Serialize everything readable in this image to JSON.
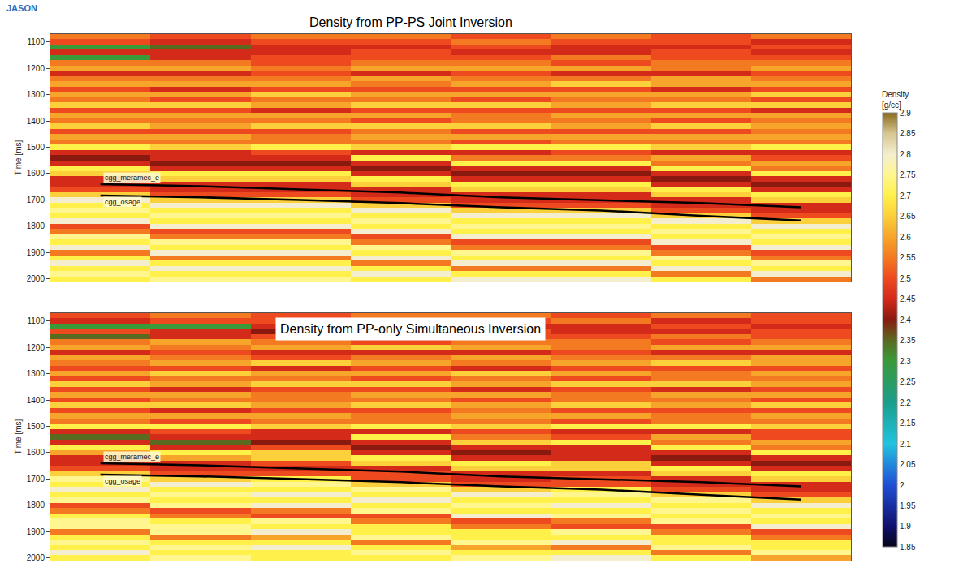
{
  "logo": "JASON",
  "colorbar": {
    "title": [
      "Density",
      "[g/cc]"
    ],
    "zlim": [
      1.85,
      2.9
    ],
    "zticks": [
      1.85,
      1.9,
      1.95,
      2,
      2.05,
      2.1,
      2.15,
      2.2,
      2.25,
      2.3,
      2.35,
      2.4,
      2.45,
      2.5,
      2.55,
      2.6,
      2.65,
      2.7,
      2.75,
      2.8,
      2.85,
      2.9
    ]
  },
  "chart_data": [
    {
      "type": "heatmap",
      "title": "Density from PP-PS Joint Inversion",
      "y_label": "Time [ms]",
      "x": [
        0,
        1,
        2,
        3,
        4,
        5,
        6,
        7
      ],
      "y": [
        1080,
        1100,
        1120,
        1140,
        1160,
        1180,
        1200,
        1220,
        1240,
        1260,
        1280,
        1300,
        1320,
        1340,
        1360,
        1380,
        1400,
        1420,
        1440,
        1460,
        1480,
        1500,
        1520,
        1540,
        1560,
        1580,
        1600,
        1620,
        1640,
        1660,
        1680,
        1700,
        1720,
        1740,
        1760,
        1780,
        1800,
        1820,
        1840,
        1860,
        1880,
        1900,
        1920,
        1940,
        1960,
        1980,
        2000
      ],
      "xlim": [
        -0.5,
        7.5
      ],
      "ylim": [
        2010,
        1070
      ],
      "yticks": [
        1100,
        1200,
        1300,
        1400,
        1500,
        1600,
        1700,
        1800,
        1900,
        2000
      ],
      "tick_labels": "y",
      "z": [
        [
          2.55,
          2.5,
          2.55,
          2.55,
          2.5,
          2.55,
          2.5,
          2.55
        ],
        [
          2.5,
          2.45,
          2.5,
          2.5,
          2.55,
          2.5,
          2.5,
          2.45
        ],
        [
          2.3,
          2.35,
          2.45,
          2.45,
          2.5,
          2.45,
          2.45,
          2.5
        ],
        [
          2.45,
          2.45,
          2.45,
          2.5,
          2.45,
          2.45,
          2.5,
          2.45
        ],
        [
          2.3,
          2.45,
          2.5,
          2.5,
          2.5,
          2.55,
          2.5,
          2.5
        ],
        [
          2.55,
          2.55,
          2.5,
          2.55,
          2.55,
          2.5,
          2.55,
          2.55
        ],
        [
          2.6,
          2.6,
          2.55,
          2.6,
          2.6,
          2.6,
          2.55,
          2.6
        ],
        [
          2.45,
          2.45,
          2.5,
          2.45,
          2.5,
          2.45,
          2.45,
          2.5
        ],
        [
          2.55,
          2.55,
          2.55,
          2.6,
          2.55,
          2.55,
          2.6,
          2.55
        ],
        [
          2.6,
          2.6,
          2.6,
          2.55,
          2.6,
          2.65,
          2.6,
          2.6
        ],
        [
          2.5,
          2.45,
          2.5,
          2.5,
          2.5,
          2.5,
          2.45,
          2.5
        ],
        [
          2.6,
          2.6,
          2.65,
          2.6,
          2.6,
          2.6,
          2.6,
          2.65
        ],
        [
          2.55,
          2.5,
          2.55,
          2.55,
          2.5,
          2.55,
          2.55,
          2.5
        ],
        [
          2.65,
          2.65,
          2.6,
          2.65,
          2.65,
          2.6,
          2.65,
          2.65
        ],
        [
          2.5,
          2.5,
          2.45,
          2.5,
          2.5,
          2.5,
          2.5,
          2.45
        ],
        [
          2.6,
          2.6,
          2.6,
          2.6,
          2.55,
          2.6,
          2.6,
          2.6
        ],
        [
          2.55,
          2.55,
          2.55,
          2.5,
          2.55,
          2.55,
          2.5,
          2.55
        ],
        [
          2.65,
          2.6,
          2.65,
          2.65,
          2.65,
          2.6,
          2.65,
          2.6
        ],
        [
          2.5,
          2.5,
          2.5,
          2.55,
          2.5,
          2.5,
          2.5,
          2.55
        ],
        [
          2.6,
          2.6,
          2.55,
          2.6,
          2.6,
          2.6,
          2.6,
          2.6
        ],
        [
          2.55,
          2.55,
          2.55,
          2.55,
          2.5,
          2.55,
          2.55,
          2.55
        ],
        [
          2.7,
          2.65,
          2.7,
          2.65,
          2.7,
          2.7,
          2.65,
          2.7
        ],
        [
          2.45,
          2.45,
          2.5,
          2.45,
          2.45,
          2.5,
          2.45,
          2.45
        ],
        [
          2.4,
          2.45,
          2.45,
          2.7,
          2.55,
          2.55,
          2.6,
          2.5
        ],
        [
          2.45,
          2.4,
          2.4,
          2.45,
          2.7,
          2.7,
          2.55,
          2.6
        ],
        [
          2.7,
          2.45,
          2.45,
          2.4,
          2.45,
          2.45,
          2.7,
          2.55
        ],
        [
          2.65,
          2.7,
          2.7,
          2.45,
          2.4,
          2.4,
          2.45,
          2.7
        ],
        [
          2.45,
          2.65,
          2.65,
          2.7,
          2.45,
          2.45,
          2.4,
          2.45
        ],
        [
          2.45,
          2.45,
          2.45,
          2.65,
          2.7,
          2.7,
          2.45,
          2.4
        ],
        [
          2.5,
          2.45,
          2.45,
          2.45,
          2.65,
          2.65,
          2.7,
          2.45
        ],
        [
          2.65,
          2.5,
          2.5,
          2.45,
          2.45,
          2.45,
          2.65,
          2.7
        ],
        [
          2.8,
          2.65,
          2.65,
          2.5,
          2.45,
          2.45,
          2.45,
          2.65
        ],
        [
          2.7,
          2.8,
          2.8,
          2.65,
          2.5,
          2.5,
          2.45,
          2.45
        ],
        [
          2.75,
          2.7,
          2.7,
          2.8,
          2.65,
          2.65,
          2.5,
          2.45
        ],
        [
          2.7,
          2.75,
          2.75,
          2.7,
          2.8,
          2.8,
          2.65,
          2.5
        ],
        [
          2.8,
          2.7,
          2.7,
          2.75,
          2.7,
          2.7,
          2.8,
          2.65
        ],
        [
          2.5,
          2.8,
          2.8,
          2.7,
          2.75,
          2.75,
          2.7,
          2.8
        ],
        [
          2.55,
          2.5,
          2.5,
          2.8,
          2.7,
          2.7,
          2.75,
          2.7
        ],
        [
          2.75,
          2.55,
          2.55,
          2.5,
          2.8,
          2.8,
          2.7,
          2.75
        ],
        [
          2.7,
          2.75,
          2.75,
          2.55,
          2.5,
          2.5,
          2.8,
          2.7
        ],
        [
          2.8,
          2.7,
          2.7,
          2.75,
          2.55,
          2.55,
          2.5,
          2.8
        ],
        [
          2.55,
          2.8,
          2.8,
          2.7,
          2.75,
          2.75,
          2.55,
          2.5
        ],
        [
          2.7,
          2.55,
          2.55,
          2.8,
          2.7,
          2.7,
          2.75,
          2.55
        ],
        [
          2.8,
          2.7,
          2.7,
          2.55,
          2.8,
          2.8,
          2.7,
          2.75
        ],
        [
          2.7,
          2.8,
          2.8,
          2.7,
          2.55,
          2.55,
          2.8,
          2.7
        ],
        [
          2.75,
          2.7,
          2.7,
          2.8,
          2.7,
          2.7,
          2.55,
          2.8
        ],
        [
          2.7,
          2.75,
          2.75,
          2.7,
          2.8,
          2.8,
          2.7,
          2.55
        ]
      ],
      "series": [
        {
          "name": "cgg_meramec_e",
          "color": "#000000",
          "values": [
            1640,
            1648,
            1660,
            1672,
            1690,
            1700,
            1712,
            1728
          ]
        },
        {
          "name": "cgg_osage",
          "color": "#000000",
          "values": [
            1683,
            1690,
            1700,
            1712,
            1728,
            1740,
            1760,
            1778
          ]
        }
      ]
    },
    {
      "type": "heatmap",
      "title": "Density from PP-only Simultaneous Inversion",
      "y_label": "Time [ms]",
      "x": [
        0,
        1,
        2,
        3,
        4,
        5,
        6,
        7
      ],
      "y": [
        1080,
        1100,
        1120,
        1140,
        1160,
        1180,
        1200,
        1220,
        1240,
        1260,
        1280,
        1300,
        1320,
        1340,
        1360,
        1380,
        1400,
        1420,
        1440,
        1460,
        1480,
        1500,
        1520,
        1540,
        1560,
        1580,
        1600,
        1620,
        1640,
        1660,
        1680,
        1700,
        1720,
        1740,
        1760,
        1780,
        1800,
        1820,
        1840,
        1860,
        1880,
        1900,
        1920,
        1940,
        1960,
        1980,
        2000
      ],
      "xlim": [
        -0.5,
        7.5
      ],
      "ylim": [
        2010,
        1070
      ],
      "yticks": [
        1100,
        1200,
        1300,
        1400,
        1500,
        1600,
        1700,
        1800,
        1900,
        2000
      ],
      "tick_labels": "y",
      "z": [
        [
          2.5,
          2.55,
          2.5,
          2.55,
          2.55,
          2.5,
          2.55,
          2.5
        ],
        [
          2.45,
          2.5,
          2.5,
          2.45,
          2.5,
          2.55,
          2.45,
          2.5
        ],
        [
          2.3,
          2.3,
          2.45,
          2.5,
          2.45,
          2.45,
          2.5,
          2.45
        ],
        [
          2.5,
          2.45,
          2.4,
          2.45,
          2.5,
          2.45,
          2.45,
          2.5
        ],
        [
          2.35,
          2.45,
          2.5,
          2.55,
          2.5,
          2.5,
          2.55,
          2.5
        ],
        [
          2.55,
          2.6,
          2.55,
          2.5,
          2.55,
          2.55,
          2.5,
          2.55
        ],
        [
          2.6,
          2.55,
          2.6,
          2.65,
          2.6,
          2.55,
          2.6,
          2.6
        ],
        [
          2.45,
          2.5,
          2.45,
          2.45,
          2.45,
          2.5,
          2.45,
          2.45
        ],
        [
          2.6,
          2.55,
          2.5,
          2.55,
          2.6,
          2.55,
          2.55,
          2.6
        ],
        [
          2.55,
          2.6,
          2.65,
          2.6,
          2.55,
          2.6,
          2.65,
          2.6
        ],
        [
          2.5,
          2.5,
          2.45,
          2.5,
          2.45,
          2.5,
          2.5,
          2.5
        ],
        [
          2.6,
          2.65,
          2.6,
          2.6,
          2.65,
          2.6,
          2.55,
          2.6
        ],
        [
          2.5,
          2.55,
          2.55,
          2.5,
          2.55,
          2.5,
          2.55,
          2.55
        ],
        [
          2.65,
          2.6,
          2.65,
          2.65,
          2.6,
          2.65,
          2.65,
          2.6
        ],
        [
          2.5,
          2.45,
          2.5,
          2.5,
          2.45,
          2.5,
          2.45,
          2.5
        ],
        [
          2.6,
          2.6,
          2.55,
          2.6,
          2.6,
          2.55,
          2.6,
          2.6
        ],
        [
          2.5,
          2.55,
          2.55,
          2.55,
          2.5,
          2.55,
          2.55,
          2.5
        ],
        [
          2.65,
          2.65,
          2.6,
          2.65,
          2.6,
          2.65,
          2.6,
          2.65
        ],
        [
          2.5,
          2.45,
          2.5,
          2.5,
          2.55,
          2.5,
          2.5,
          2.5
        ],
        [
          2.6,
          2.6,
          2.6,
          2.55,
          2.6,
          2.6,
          2.55,
          2.6
        ],
        [
          2.55,
          2.5,
          2.55,
          2.55,
          2.55,
          2.5,
          2.55,
          2.55
        ],
        [
          2.7,
          2.7,
          2.65,
          2.7,
          2.65,
          2.7,
          2.7,
          2.65
        ],
        [
          2.45,
          2.5,
          2.45,
          2.45,
          2.5,
          2.45,
          2.45,
          2.5
        ],
        [
          2.35,
          2.45,
          2.45,
          2.7,
          2.55,
          2.5,
          2.6,
          2.5
        ],
        [
          2.45,
          2.35,
          2.4,
          2.45,
          2.65,
          2.7,
          2.55,
          2.6
        ],
        [
          2.7,
          2.45,
          2.5,
          2.4,
          2.45,
          2.45,
          2.7,
          2.55
        ],
        [
          2.6,
          2.7,
          2.65,
          2.45,
          2.4,
          2.45,
          2.45,
          2.7
        ],
        [
          2.45,
          2.6,
          2.65,
          2.7,
          2.45,
          2.45,
          2.4,
          2.45
        ],
        [
          2.45,
          2.45,
          2.5,
          2.65,
          2.7,
          2.65,
          2.45,
          2.4
        ],
        [
          2.5,
          2.45,
          2.45,
          2.45,
          2.65,
          2.65,
          2.7,
          2.45
        ],
        [
          2.65,
          2.5,
          2.5,
          2.5,
          2.45,
          2.45,
          2.65,
          2.7
        ],
        [
          2.75,
          2.65,
          2.7,
          2.5,
          2.45,
          2.5,
          2.45,
          2.65
        ],
        [
          2.7,
          2.8,
          2.75,
          2.65,
          2.5,
          2.5,
          2.45,
          2.45
        ],
        [
          2.8,
          2.7,
          2.7,
          2.75,
          2.65,
          2.7,
          2.5,
          2.45
        ],
        [
          2.7,
          2.75,
          2.8,
          2.7,
          2.8,
          2.75,
          2.65,
          2.5
        ],
        [
          2.75,
          2.7,
          2.7,
          2.8,
          2.7,
          2.7,
          2.75,
          2.65
        ],
        [
          2.5,
          2.75,
          2.8,
          2.7,
          2.75,
          2.8,
          2.7,
          2.8
        ],
        [
          2.55,
          2.5,
          2.55,
          2.75,
          2.7,
          2.7,
          2.75,
          2.7
        ],
        [
          2.7,
          2.55,
          2.5,
          2.5,
          2.8,
          2.75,
          2.7,
          2.75
        ],
        [
          2.75,
          2.7,
          2.75,
          2.55,
          2.5,
          2.55,
          2.75,
          2.7
        ],
        [
          2.75,
          2.75,
          2.7,
          2.7,
          2.55,
          2.5,
          2.5,
          2.8
        ],
        [
          2.55,
          2.75,
          2.8,
          2.7,
          2.7,
          2.75,
          2.55,
          2.5
        ],
        [
          2.7,
          2.55,
          2.6,
          2.75,
          2.7,
          2.7,
          2.7,
          2.55
        ],
        [
          2.75,
          2.7,
          2.7,
          2.55,
          2.75,
          2.8,
          2.7,
          2.7
        ],
        [
          2.7,
          2.75,
          2.8,
          2.7,
          2.6,
          2.55,
          2.75,
          2.7
        ],
        [
          2.8,
          2.7,
          2.7,
          2.75,
          2.7,
          2.7,
          2.55,
          2.75
        ],
        [
          2.7,
          2.75,
          2.7,
          2.7,
          2.75,
          2.8,
          2.7,
          2.6
        ]
      ],
      "series": [
        {
          "name": "cgg_meramec_e",
          "color": "#000000",
          "values": [
            1640,
            1648,
            1660,
            1672,
            1690,
            1700,
            1712,
            1728
          ]
        },
        {
          "name": "cgg_osage",
          "color": "#000000",
          "values": [
            1683,
            1690,
            1700,
            1712,
            1728,
            1740,
            1760,
            1778
          ]
        }
      ]
    }
  ]
}
